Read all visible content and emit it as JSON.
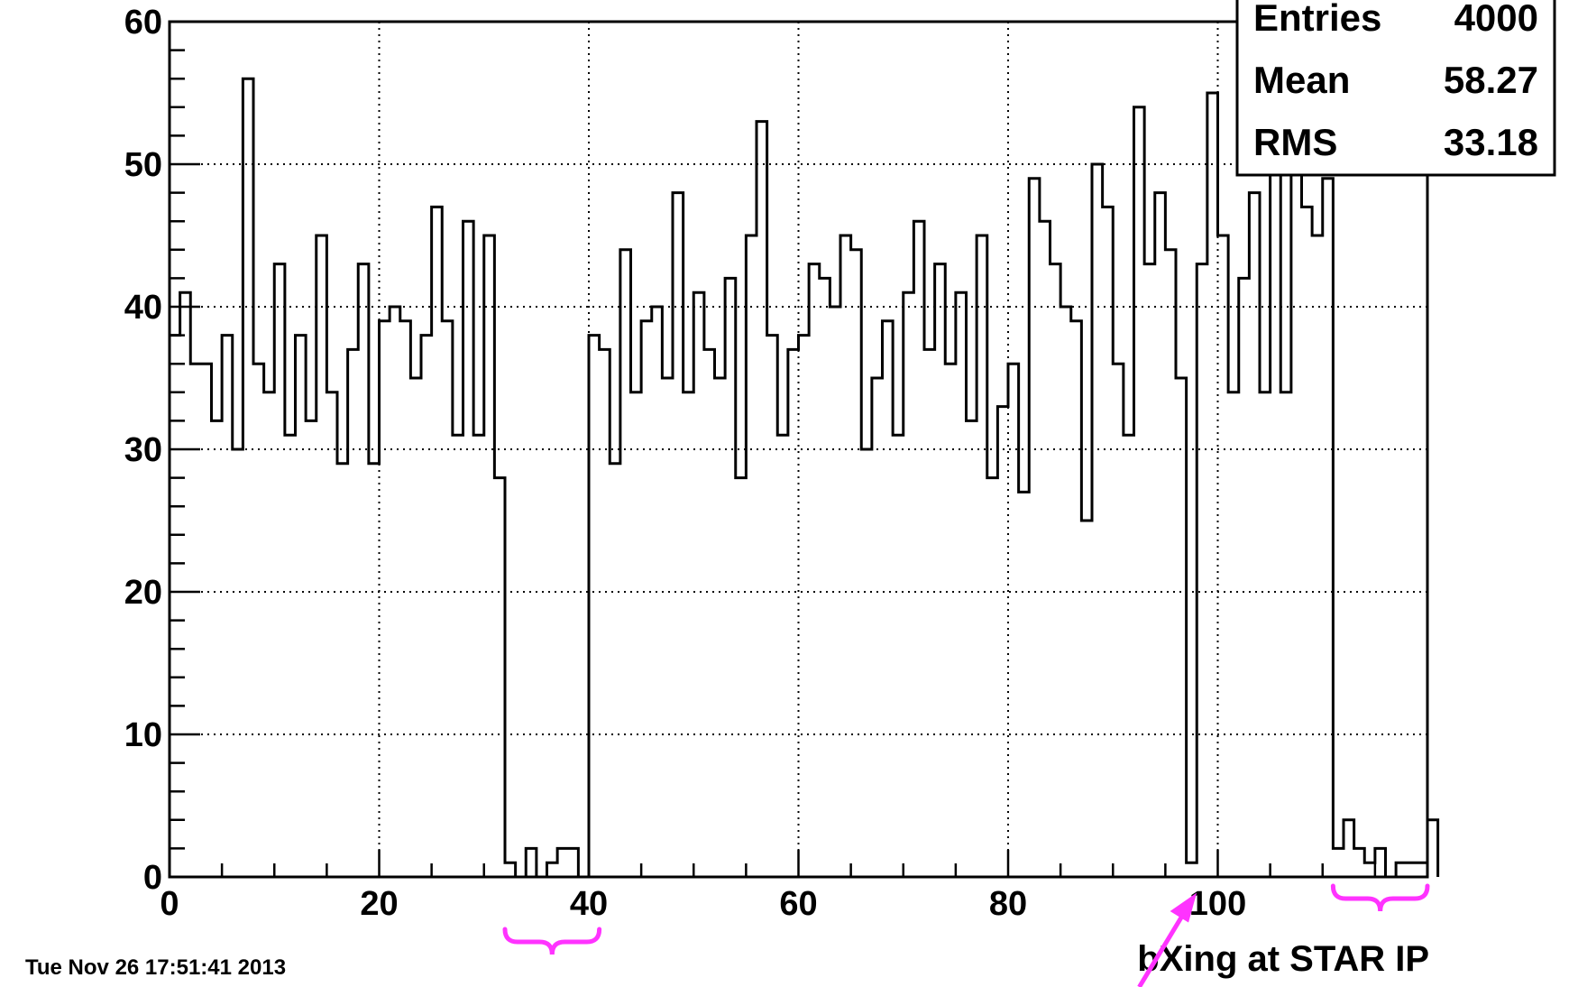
{
  "chart_data": {
    "type": "bar",
    "title": "",
    "xlabel": "bXing at STAR IP",
    "ylabel": "",
    "xlim": [
      0,
      120
    ],
    "ylim": [
      0,
      60
    ],
    "x_ticks": [
      0,
      20,
      40,
      60,
      80,
      100
    ],
    "y_ticks": [
      0,
      10,
      20,
      30,
      40,
      50,
      60
    ],
    "grid": true,
    "bin_width": 1,
    "series": [
      {
        "values": [
          38,
          41,
          36,
          36,
          32,
          38,
          30,
          56,
          36,
          34,
          43,
          31,
          38,
          32,
          45,
          34,
          29,
          37,
          43,
          29,
          39,
          40,
          39,
          35,
          38,
          47,
          39,
          31,
          46,
          31,
          45,
          28,
          1,
          0,
          2,
          0,
          1,
          2,
          2,
          0,
          38,
          37,
          29,
          44,
          34,
          39,
          40,
          35,
          48,
          34,
          41,
          37,
          35,
          42,
          28,
          45,
          53,
          38,
          31,
          37,
          38,
          43,
          42,
          40,
          45,
          44,
          30,
          35,
          39,
          31,
          41,
          46,
          37,
          43,
          36,
          41,
          32,
          45,
          28,
          33,
          36,
          27,
          49,
          46,
          43,
          40,
          39,
          25,
          50,
          47,
          36,
          31,
          54,
          43,
          48,
          44,
          35,
          1,
          43,
          55,
          45,
          34,
          42,
          48,
          34,
          58,
          34,
          52,
          47,
          45,
          49,
          2,
          4,
          2,
          1,
          2,
          0,
          1,
          1,
          1,
          4
        ]
      }
    ],
    "stats_box": {
      "entries_label": "Entries",
      "entries_value": "4000",
      "mean_label": "Mean",
      "mean_value": "58.27",
      "rms_label": "RMS",
      "rms_value": "33.18"
    },
    "timestamp": "Tue Nov 26 17:51:41 2013",
    "annotation_color": "#ff33ff",
    "annotations": {
      "braces_x": [
        [
          32,
          41
        ],
        [
          111,
          120
        ]
      ],
      "arrow_target_x": 97.5
    }
  }
}
